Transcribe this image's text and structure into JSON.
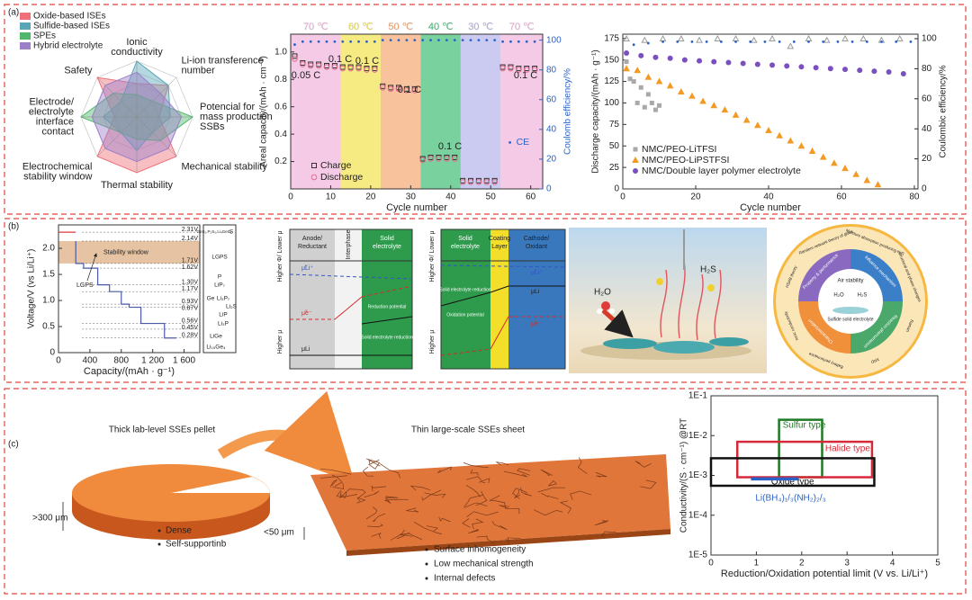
{
  "panel_labels": [
    "(a)",
    "(b)",
    "(c)"
  ],
  "chart_data": [
    {
      "type": "radar",
      "rlim": [
        0,
        5
      ],
      "axes": [
        [
          "Ionic",
          "conductivity"
        ],
        [
          "Li-ion transference",
          "number"
        ],
        [
          "Potencial for",
          "mass production",
          "SSBs"
        ],
        [
          "Mechanical stability"
        ],
        [
          "Thermal stability"
        ],
        [
          "Electrochemical",
          "stability window"
        ],
        [
          "Electrode/",
          "electrolyte",
          "interface",
          "contact"
        ],
        [
          "Safety"
        ]
      ],
      "series": [
        {
          "name": "Oxide-based ISEs",
          "color": "#f0707a",
          "values": [
            3,
            4,
            2,
            5,
            5,
            5,
            2,
            5
          ]
        },
        {
          "name": "Sulfide-based ISEs",
          "color": "#5aa6b8",
          "values": [
            5,
            4,
            3,
            2,
            3,
            2,
            3,
            2
          ]
        },
        {
          "name": "SPEs",
          "color": "#4fb86a",
          "values": [
            2,
            2,
            5,
            3,
            2,
            2,
            5,
            3
          ]
        },
        {
          "name": "Hybrid electrolyte",
          "color": "#9b7fc9",
          "values": [
            4,
            3,
            4,
            4,
            4,
            4,
            4,
            4
          ]
        }
      ]
    },
    {
      "type": "scatter",
      "x_label": "Cycle number",
      "y_label": "Areal capacity/(mAh · cm⁻²)",
      "y2_label": "Coulomb efficiency/%",
      "y2_color": "#2a62c8",
      "xlim": [
        0,
        63
      ],
      "xticks": [
        0,
        10,
        20,
        30,
        40,
        50,
        60
      ],
      "ylim": [
        0,
        1.13
      ],
      "yticks": [
        0.2,
        0.4,
        0.6,
        0.8,
        {
          "value": 1,
          "label": "1.0"
        }
      ],
      "y2lim": [
        0,
        104
      ],
      "y2ticks": [
        0,
        20,
        40,
        60,
        80,
        100
      ],
      "bands": [
        {
          "label": "70 ℃",
          "from": 0,
          "to": 12.5,
          "color": "#f2b8de"
        },
        {
          "label": "60 ℃",
          "from": 12.5,
          "to": 22.5,
          "color": "#f3e35a"
        },
        {
          "label": "50 ℃",
          "from": 22.5,
          "to": 32.5,
          "color": "#f6ad7c"
        },
        {
          "label": "40 ℃",
          "from": 32.5,
          "to": 42.5,
          "color": "#4cc27e"
        },
        {
          "label": "30 ℃",
          "from": 42.5,
          "to": 52.5,
          "color": "#b9b8ec"
        },
        {
          "label": "70 ℃",
          "from": 52.5,
          "to": 63,
          "color": "#f2b8de"
        }
      ],
      "annotations": [
        "0.05 C",
        "0.1 C",
        "0.1 C",
        "0.1 C",
        "0.1 C",
        "0.1 C"
      ],
      "x": [
        1,
        3,
        5,
        7,
        9,
        11,
        13,
        15,
        17,
        19,
        21,
        23,
        25,
        27,
        29,
        31,
        33,
        35,
        37,
        39,
        41,
        43,
        45,
        47,
        49,
        51,
        53,
        55,
        57,
        59,
        61
      ],
      "series": [
        {
          "name": "Charge",
          "color": "#333333",
          "marker": "open-square",
          "values": [
            0.97,
            0.92,
            0.91,
            0.91,
            0.9,
            0.9,
            0.89,
            0.89,
            0.89,
            0.88,
            0.88,
            0.75,
            0.74,
            0.74,
            0.73,
            0.73,
            0.22,
            0.23,
            0.23,
            0.23,
            0.23,
            0.06,
            0.06,
            0.06,
            0.06,
            0.06,
            0.89,
            0.89,
            0.88,
            0.88,
            0.88
          ]
        },
        {
          "name": "Discharge",
          "color": "#e2708f",
          "marker": "open-circle",
          "values": [
            0.95,
            0.91,
            0.9,
            0.9,
            0.89,
            0.89,
            0.88,
            0.88,
            0.88,
            0.87,
            0.87,
            0.74,
            0.73,
            0.73,
            0.72,
            0.72,
            0.21,
            0.22,
            0.22,
            0.22,
            0.22,
            0.05,
            0.05,
            0.05,
            0.05,
            0.05,
            0.88,
            0.88,
            0.87,
            0.87,
            0.87
          ]
        },
        {
          "name": "CE",
          "color": "#2a62c8",
          "marker": "dot",
          "axis": "y2",
          "values": [
            97,
            99,
            99,
            99,
            99,
            99,
            99,
            99,
            99,
            99,
            99,
            100,
            100,
            100,
            100,
            100,
            100,
            100,
            100,
            100,
            100,
            100,
            100,
            100,
            100,
            100,
            99,
            99,
            99,
            99,
            99
          ]
        }
      ]
    },
    {
      "type": "scatter",
      "x_label": "Cycle number",
      "y_label": "Discharge capacity/(mAh · g⁻¹)",
      "y2_label": "Coulombic efficiency/%",
      "y2_color": "#222222",
      "legend": "lower left",
      "xlim": [
        0,
        81
      ],
      "xticks": [
        0,
        20,
        40,
        60,
        80
      ],
      "ylim": [
        0,
        180
      ],
      "yticks": [
        0,
        25,
        50,
        75,
        100,
        125,
        150,
        175
      ],
      "y2lim": [
        0,
        103
      ],
      "y2ticks": [
        0,
        20,
        40,
        60,
        80,
        100
      ],
      "series": [
        {
          "name": "NMC/PEO-LiTFSI",
          "color": "#a9a9a9",
          "marker": "square",
          "x": [
            1,
            2,
            3,
            4,
            5,
            6,
            7,
            8,
            9,
            10
          ],
          "values": [
            148,
            128,
            125,
            100,
            118,
            95,
            110,
            100,
            92,
            97
          ]
        },
        {
          "name": "NMC/PEO-LiPSTFSI",
          "color": "#f39a25",
          "marker": "triangle",
          "x": [
            1,
            4,
            7,
            10,
            13,
            16,
            19,
            22,
            25,
            28,
            31,
            34,
            37,
            40,
            43,
            46,
            49,
            52,
            55,
            58,
            61,
            64,
            67,
            70
          ],
          "values": [
            140,
            138,
            130,
            125,
            120,
            113,
            108,
            102,
            97,
            92,
            86,
            80,
            74,
            68,
            62,
            56,
            50,
            44,
            37,
            30,
            24,
            17,
            10,
            5
          ]
        },
        {
          "name": "NMC/Double layer polymer electrolyte",
          "color": "#7a4fc0",
          "marker": "circle",
          "x": [
            1,
            5,
            9,
            13,
            17,
            21,
            25,
            29,
            33,
            37,
            41,
            45,
            49,
            53,
            57,
            61,
            65,
            69,
            73,
            77
          ],
          "values": [
            158,
            155,
            153,
            152,
            150,
            149,
            148,
            147,
            146,
            145,
            144,
            143,
            142,
            141,
            140,
            139,
            138,
            137,
            136,
            134
          ]
        },
        {
          "color": "#9a9a9a",
          "marker": "open-triangle",
          "axis": "y2",
          "x": [
            1,
            6,
            11,
            16,
            21,
            26,
            31,
            36,
            41,
            46,
            51,
            56,
            61,
            66,
            71,
            76
          ],
          "values": [
            100,
            99,
            100,
            100,
            99,
            100,
            100,
            99,
            100,
            95,
            100,
            99,
            100,
            100,
            99,
            100
          ]
        },
        {
          "color": "#2a62c8",
          "marker": "dot",
          "axis": "y2",
          "x": [
            3,
            7,
            11,
            15,
            19,
            23,
            27,
            31,
            35,
            39,
            43,
            47,
            51,
            55,
            59,
            63,
            67,
            71,
            75,
            79
          ],
          "values": [
            96,
            97,
            98,
            98,
            98,
            98,
            98,
            98,
            98,
            98,
            98,
            98,
            98,
            98,
            98,
            98,
            98,
            98,
            98,
            98
          ]
        }
      ]
    },
    {
      "type": "line",
      "x_label": "Capacity/(mAh · g⁻¹)",
      "y_label": "Voltage/V (vs Li/Li⁺)",
      "xlim": [
        0,
        1800
      ],
      "xticks": [
        0,
        400,
        800,
        {
          "value": 1200,
          "label": "1 200"
        },
        {
          "value": 1600,
          "label": "1 600"
        }
      ],
      "ylim": [
        0,
        2.45
      ],
      "yticks": [
        0,
        0.5,
        {
          "value": 1,
          "label": "1.0"
        },
        1.5,
        {
          "value": 2,
          "label": "2.0"
        }
      ],
      "window": {
        "label": "Stability window",
        "range": [
          1.71,
          2.14
        ],
        "color": "#e6c3a2"
      },
      "annotations": [
        "LGPS"
      ],
      "series": [
        {
          "color": "#d83a3a",
          "x": [
            0,
            220
          ],
          "values": [
            2.31,
            2.31
          ]
        },
        {
          "color": "#4a5aa8",
          "x": [
            220,
            220,
            320,
            320,
            500,
            500,
            650,
            650,
            800,
            800,
            900,
            900,
            1050,
            1050,
            1350,
            1350,
            1500
          ],
          "values": [
            2.14,
            1.71,
            1.71,
            1.62,
            1.62,
            1.3,
            1.3,
            1.17,
            1.17,
            0.93,
            0.93,
            0.87,
            0.87,
            0.56,
            0.56,
            0.28,
            0.28
          ]
        }
      ],
      "levels": [
        {
          "value": 2.31,
          "label": "2.31V"
        },
        {
          "value": 2.14,
          "label": "2.14V"
        },
        {
          "value": 1.71,
          "label": "1.71V"
        },
        {
          "value": 1.62,
          "label": "1.62V"
        },
        {
          "value": 1.3,
          "label": "1.30V"
        },
        {
          "value": 1.17,
          "label": "1.17V"
        },
        {
          "value": 0.93,
          "label": "0.93V"
        },
        {
          "value": 0.87,
          "label": "0.87V"
        },
        {
          "value": 0.56,
          "label": "0.56V"
        },
        {
          "value": 0.45,
          "label": "0.45V"
        },
        {
          "value": 0.28,
          "label": "0.28V"
        }
      ],
      "phases": [
        "GeS₂,P₂S₅,Li₄GeS₄",
        "S",
        "LGPS",
        "P",
        "LiP₇",
        "Ge",
        "Li₃P₇",
        "Li₂S",
        "LiP",
        "Li₃P",
        "LiGe",
        "Li₁₅Ge₄"
      ]
    },
    {
      "type": "range-box",
      "x_label": "Reduction/Oxidation potential limit (V vs. Li/Li⁺)",
      "y_label": "Conductivity/(S · cm⁻¹) @RT",
      "log_y": true,
      "xlim": [
        0,
        5
      ],
      "xticks": [
        0,
        1,
        2,
        3,
        4,
        5
      ],
      "ylim": [
        1e-05,
        0.1
      ],
      "yticks": [
        {
          "value": 1e-05,
          "label": "1E-5"
        },
        {
          "value": 0.0001,
          "label": "1E-4"
        },
        {
          "value": 0.001,
          "label": "1E-3"
        },
        {
          "value": 0.01,
          "label": "1E-2"
        },
        {
          "value": 0.1,
          "label": "1E-1"
        }
      ],
      "series": [
        {
          "name": "Sulfur type",
          "color": "#1f7a25",
          "x": [
            1.5,
            2.45
          ],
          "y": [
            0.0009,
            0.025
          ]
        },
        {
          "name": "Halide type",
          "color": "#d62a3a",
          "x": [
            0.58,
            3.55
          ],
          "y": [
            0.0009,
            0.007
          ]
        },
        {
          "name": "Oxide type",
          "color": "#111111",
          "x": [
            0,
            3.6
          ],
          "y": [
            0.00055,
            0.0027
          ]
        },
        {
          "name": "Li(BH₄)₁/₃(NH₂)₂/₃",
          "color": "#2a62c8",
          "x": [
            0.9,
            1.9
          ],
          "y": [
            0.00085,
            0.00085
          ]
        }
      ]
    }
  ],
  "interphase_diagram": {
    "axis": [
      "Higher Φ/ Lower μ",
      "Higher μ"
    ],
    "columns": [
      [
        "Anode/",
        "Reductant"
      ],
      [
        "Interphase"
      ],
      [
        "Solid",
        "electrolyte"
      ]
    ],
    "labels": [
      "μ̃Li⁺",
      "μ̃e⁻",
      "μLi",
      "Reduction potential",
      "Solid electrolyte reduction"
    ]
  },
  "coating_diagram": {
    "axis": [
      "Higher Φ/ Lower μ",
      "Higher μ"
    ],
    "columns": [
      [
        "Solid",
        "electrolyte"
      ],
      [
        "Coating",
        "Layer"
      ],
      [
        "Cathode/",
        "Oxidant"
      ]
    ],
    "labels": [
      "Solid electrolyte reduction",
      "Oxidation potential",
      "μ̃Li⁺",
      "μLi",
      "μ̃e⁻"
    ]
  },
  "air_image": {
    "labels": [
      "H₂O",
      "H₂S"
    ]
  },
  "wheel": {
    "center": [
      "Air stability",
      "H₂O",
      "H₂S",
      "Sulfide solid electrolyte"
    ],
    "inner": [
      "Influence mechanism",
      "Reaction phenomenon",
      "Characterization",
      "Property & performance"
    ],
    "outer": [
      "Random network theory of glass",
      "Moisture absorption producing H₂S",
      "Structural and phase changes",
      "Raman",
      "XRD",
      "Battery performance",
      "Ionic conductivity",
      "HSAB theory"
    ]
  },
  "scale_image": {
    "titles": [
      "Thick lab-level SSEs pellet",
      "Thin large-scale SSEs sheet"
    ],
    "thickness": [
      ">300 μm",
      "<50 μm"
    ],
    "pellet_notes": [
      "Dense",
      "Self-supportinb"
    ],
    "sheet_notes": [
      "Surface inhomogeneity",
      "Low mechanical strength",
      "Internal defects"
    ]
  }
}
